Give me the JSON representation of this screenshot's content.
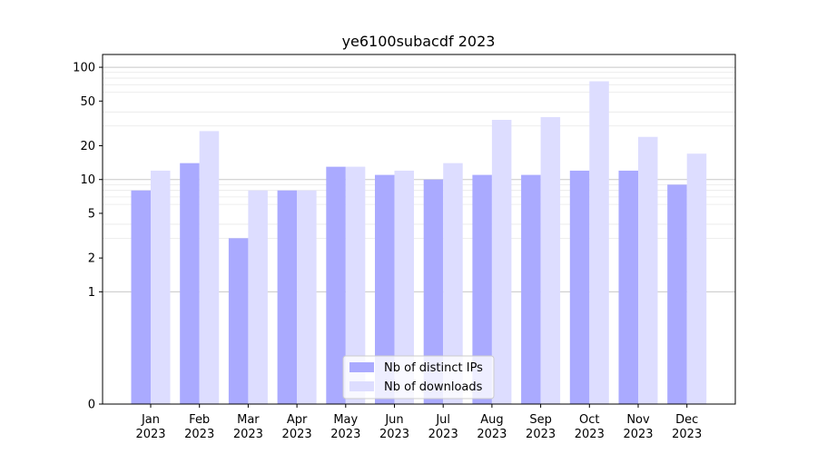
{
  "chart_data": {
    "type": "bar",
    "title": "ye6100subacdf 2023",
    "xlabel": "",
    "ylabel": "",
    "categories": [
      "Jan\n2023",
      "Feb\n2023",
      "Mar\n2023",
      "Apr\n2023",
      "May\n2023",
      "Jun\n2023",
      "Jul\n2023",
      "Aug\n2023",
      "Sep\n2023",
      "Oct\n2023",
      "Nov\n2023",
      "Dec\n2023"
    ],
    "series": [
      {
        "name": "Nb of distinct IPs",
        "color": "#aaaaff",
        "values": [
          8,
          14,
          3,
          8,
          13,
          11,
          10,
          11,
          11,
          12,
          12,
          9
        ]
      },
      {
        "name": "Nb of downloads",
        "color": "#ddddff",
        "values": [
          12,
          27,
          8,
          8,
          13,
          12,
          14,
          34,
          36,
          75,
          24,
          17
        ]
      }
    ],
    "y_scale": "symlog",
    "yticks": [
      0,
      1,
      2,
      5,
      10,
      20,
      50,
      100
    ],
    "ylim": [
      0,
      130
    ],
    "grid": true,
    "legend_position": "lower-center"
  }
}
